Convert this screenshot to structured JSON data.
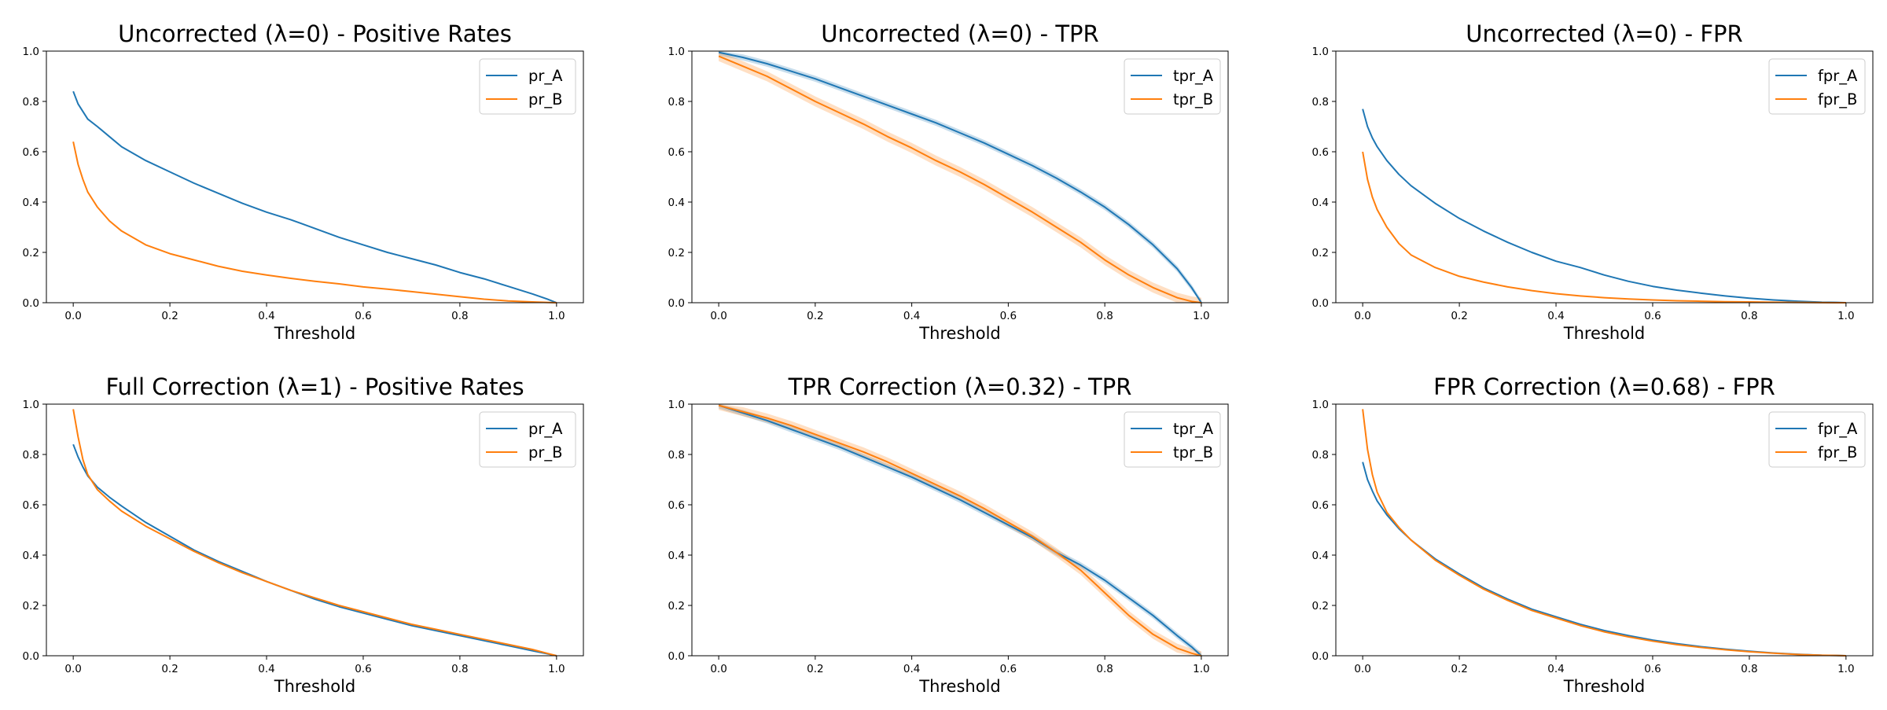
{
  "chart_data": [
    {
      "type": "line",
      "title": "Uncorrected (λ=0) - Positive Rates",
      "xlabel": "Threshold",
      "ylabel": "",
      "xlim": [
        0,
        1
      ],
      "ylim": [
        0,
        1
      ],
      "xticks": [
        "0.0",
        "0.2",
        "0.4",
        "0.6",
        "0.8",
        "1.0"
      ],
      "yticks": [
        "0.0",
        "0.2",
        "0.4",
        "0.6",
        "0.8",
        "1.0"
      ],
      "legend_position": "top-right",
      "grid": false,
      "x": [
        0,
        0.01,
        0.02,
        0.03,
        0.05,
        0.075,
        0.1,
        0.15,
        0.2,
        0.25,
        0.3,
        0.35,
        0.4,
        0.45,
        0.5,
        0.55,
        0.6,
        0.65,
        0.7,
        0.75,
        0.8,
        0.85,
        0.9,
        0.95,
        0.98,
        1.0
      ],
      "series": [
        {
          "name": "pr_A",
          "color": "#1f77b4",
          "band": 0,
          "values": [
            0.84,
            0.79,
            0.76,
            0.73,
            0.7,
            0.66,
            0.62,
            0.565,
            0.52,
            0.475,
            0.435,
            0.395,
            0.36,
            0.33,
            0.295,
            0.26,
            0.23,
            0.2,
            0.175,
            0.15,
            0.12,
            0.095,
            0.065,
            0.035,
            0.015,
            0.0
          ]
        },
        {
          "name": "pr_B",
          "color": "#ff7f0e",
          "band": 0,
          "values": [
            0.64,
            0.55,
            0.49,
            0.44,
            0.38,
            0.325,
            0.285,
            0.23,
            0.195,
            0.17,
            0.145,
            0.125,
            0.11,
            0.097,
            0.085,
            0.075,
            0.063,
            0.054,
            0.044,
            0.034,
            0.024,
            0.014,
            0.007,
            0.003,
            0.001,
            0.0
          ]
        }
      ]
    },
    {
      "type": "line",
      "title": "Uncorrected (λ=0) - TPR",
      "xlabel": "Threshold",
      "ylabel": "",
      "xlim": [
        0,
        1
      ],
      "ylim": [
        0,
        1
      ],
      "xticks": [
        "0.0",
        "0.2",
        "0.4",
        "0.6",
        "0.8",
        "1.0"
      ],
      "yticks": [
        "0.0",
        "0.2",
        "0.4",
        "0.6",
        "0.8",
        "1.0"
      ],
      "legend_position": "top-right",
      "grid": false,
      "x": [
        0,
        0.05,
        0.1,
        0.15,
        0.2,
        0.25,
        0.3,
        0.35,
        0.4,
        0.45,
        0.5,
        0.55,
        0.6,
        0.65,
        0.7,
        0.75,
        0.8,
        0.85,
        0.9,
        0.95,
        0.98,
        1.0
      ],
      "series": [
        {
          "name": "tpr_A",
          "color": "#1f77b4",
          "band": 0.012,
          "values": [
            0.995,
            0.975,
            0.95,
            0.92,
            0.89,
            0.855,
            0.82,
            0.785,
            0.75,
            0.715,
            0.675,
            0.635,
            0.59,
            0.545,
            0.495,
            0.44,
            0.38,
            0.31,
            0.23,
            0.135,
            0.06,
            0.0
          ]
        },
        {
          "name": "tpr_B",
          "color": "#ff7f0e",
          "band": 0.02,
          "values": [
            0.98,
            0.94,
            0.9,
            0.85,
            0.8,
            0.755,
            0.71,
            0.66,
            0.615,
            0.565,
            0.52,
            0.47,
            0.415,
            0.36,
            0.3,
            0.24,
            0.17,
            0.11,
            0.06,
            0.02,
            0.005,
            0.0
          ]
        }
      ]
    },
    {
      "type": "line",
      "title": "Uncorrected (λ=0) - FPR",
      "xlabel": "Threshold",
      "ylabel": "",
      "xlim": [
        0,
        1
      ],
      "ylim": [
        0,
        1
      ],
      "xticks": [
        "0.0",
        "0.2",
        "0.4",
        "0.6",
        "0.8",
        "1.0"
      ],
      "yticks": [
        "0.0",
        "0.2",
        "0.4",
        "0.6",
        "0.8",
        "1.0"
      ],
      "legend_position": "top-right",
      "grid": false,
      "x": [
        0,
        0.01,
        0.02,
        0.03,
        0.05,
        0.075,
        0.1,
        0.15,
        0.2,
        0.25,
        0.3,
        0.35,
        0.4,
        0.45,
        0.5,
        0.55,
        0.6,
        0.65,
        0.7,
        0.75,
        0.8,
        0.85,
        0.9,
        0.95,
        0.98,
        1.0
      ],
      "series": [
        {
          "name": "fpr_A",
          "color": "#1f77b4",
          "band": 0,
          "values": [
            0.77,
            0.7,
            0.655,
            0.62,
            0.565,
            0.51,
            0.465,
            0.395,
            0.335,
            0.285,
            0.24,
            0.2,
            0.165,
            0.14,
            0.11,
            0.085,
            0.065,
            0.05,
            0.038,
            0.027,
            0.018,
            0.011,
            0.006,
            0.002,
            0.001,
            0.0
          ]
        },
        {
          "name": "fpr_B",
          "color": "#ff7f0e",
          "band": 0,
          "values": [
            0.6,
            0.49,
            0.42,
            0.37,
            0.3,
            0.235,
            0.19,
            0.14,
            0.105,
            0.082,
            0.063,
            0.048,
            0.036,
            0.027,
            0.02,
            0.015,
            0.011,
            0.008,
            0.006,
            0.004,
            0.003,
            0.002,
            0.001,
            0.0005,
            0.0002,
            0.0
          ]
        }
      ]
    },
    {
      "type": "line",
      "title": "Full Correction (λ=1) - Positive Rates",
      "xlabel": "Threshold",
      "ylabel": "",
      "xlim": [
        0,
        1
      ],
      "ylim": [
        0,
        1
      ],
      "xticks": [
        "0.0",
        "0.2",
        "0.4",
        "0.6",
        "0.8",
        "1.0"
      ],
      "yticks": [
        "0.0",
        "0.2",
        "0.4",
        "0.6",
        "0.8",
        "1.0"
      ],
      "legend_position": "top-right",
      "grid": false,
      "x": [
        0,
        0.01,
        0.02,
        0.03,
        0.05,
        0.075,
        0.1,
        0.15,
        0.2,
        0.25,
        0.3,
        0.35,
        0.4,
        0.45,
        0.5,
        0.55,
        0.6,
        0.65,
        0.7,
        0.75,
        0.8,
        0.85,
        0.9,
        0.95,
        0.98,
        1.0
      ],
      "series": [
        {
          "name": "pr_A",
          "color": "#1f77b4",
          "band": 0,
          "values": [
            0.84,
            0.79,
            0.75,
            0.715,
            0.67,
            0.63,
            0.595,
            0.53,
            0.475,
            0.42,
            0.375,
            0.335,
            0.295,
            0.26,
            0.225,
            0.195,
            0.17,
            0.145,
            0.12,
            0.1,
            0.08,
            0.06,
            0.04,
            0.02,
            0.008,
            0.0
          ]
        },
        {
          "name": "pr_B",
          "color": "#ff7f0e",
          "band": 0,
          "values": [
            0.98,
            0.87,
            0.78,
            0.72,
            0.66,
            0.615,
            0.575,
            0.515,
            0.465,
            0.415,
            0.37,
            0.33,
            0.295,
            0.26,
            0.23,
            0.2,
            0.175,
            0.15,
            0.125,
            0.105,
            0.085,
            0.065,
            0.045,
            0.025,
            0.01,
            0.0
          ]
        }
      ]
    },
    {
      "type": "line",
      "title": "TPR Correction (λ=0.32) - TPR",
      "xlabel": "Threshold",
      "ylabel": "",
      "xlim": [
        0,
        1
      ],
      "ylim": [
        0,
        1
      ],
      "xticks": [
        "0.0",
        "0.2",
        "0.4",
        "0.6",
        "0.8",
        "1.0"
      ],
      "yticks": [
        "0.0",
        "0.2",
        "0.4",
        "0.6",
        "0.8",
        "1.0"
      ],
      "legend_position": "top-right",
      "grid": false,
      "x": [
        0,
        0.05,
        0.1,
        0.15,
        0.2,
        0.25,
        0.3,
        0.35,
        0.4,
        0.45,
        0.5,
        0.55,
        0.6,
        0.65,
        0.7,
        0.75,
        0.8,
        0.85,
        0.9,
        0.95,
        0.98,
        1.0
      ],
      "series": [
        {
          "name": "tpr_A",
          "color": "#1f77b4",
          "band": 0.012,
          "values": [
            0.995,
            0.965,
            0.935,
            0.9,
            0.865,
            0.83,
            0.79,
            0.75,
            0.71,
            0.665,
            0.62,
            0.57,
            0.52,
            0.47,
            0.41,
            0.36,
            0.3,
            0.23,
            0.16,
            0.08,
            0.035,
            0.0
          ]
        },
        {
          "name": "tpr_B",
          "color": "#ff7f0e",
          "band": 0.018,
          "values": [
            0.995,
            0.97,
            0.945,
            0.915,
            0.88,
            0.845,
            0.81,
            0.77,
            0.725,
            0.68,
            0.635,
            0.585,
            0.53,
            0.475,
            0.41,
            0.34,
            0.25,
            0.16,
            0.085,
            0.03,
            0.01,
            0.0
          ]
        }
      ]
    },
    {
      "type": "line",
      "title": "FPR Correction (λ=0.68) - FPR",
      "xlabel": "Threshold",
      "ylabel": "",
      "xlim": [
        0,
        1
      ],
      "ylim": [
        0,
        1
      ],
      "xticks": [
        "0.0",
        "0.2",
        "0.4",
        "0.6",
        "0.8",
        "1.0"
      ],
      "yticks": [
        "0.0",
        "0.2",
        "0.4",
        "0.6",
        "0.8",
        "1.0"
      ],
      "legend_position": "top-right",
      "grid": false,
      "x": [
        0,
        0.01,
        0.02,
        0.03,
        0.05,
        0.075,
        0.1,
        0.15,
        0.2,
        0.25,
        0.3,
        0.35,
        0.4,
        0.45,
        0.5,
        0.55,
        0.6,
        0.65,
        0.7,
        0.75,
        0.8,
        0.85,
        0.9,
        0.95,
        0.98,
        1.0
      ],
      "series": [
        {
          "name": "fpr_A",
          "color": "#1f77b4",
          "band": 0,
          "values": [
            0.77,
            0.7,
            0.655,
            0.615,
            0.56,
            0.505,
            0.46,
            0.385,
            0.325,
            0.27,
            0.225,
            0.185,
            0.155,
            0.125,
            0.1,
            0.08,
            0.062,
            0.048,
            0.036,
            0.026,
            0.018,
            0.011,
            0.006,
            0.002,
            0.001,
            0.0
          ]
        },
        {
          "name": "fpr_B",
          "color": "#ff7f0e",
          "band": 0,
          "values": [
            0.98,
            0.82,
            0.72,
            0.65,
            0.57,
            0.51,
            0.46,
            0.38,
            0.32,
            0.265,
            0.22,
            0.18,
            0.15,
            0.12,
            0.095,
            0.075,
            0.058,
            0.044,
            0.033,
            0.024,
            0.016,
            0.01,
            0.005,
            0.002,
            0.001,
            0.0
          ]
        }
      ]
    }
  ]
}
